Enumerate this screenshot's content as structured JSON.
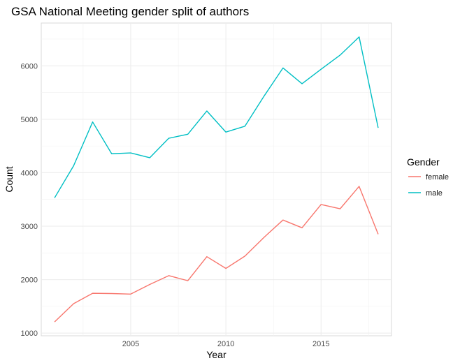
{
  "chart_data": {
    "type": "line",
    "title": "GSA National Meeting gender split of authors",
    "xlabel": "Year",
    "ylabel": "Count",
    "xlim": [
      2000.3,
      2018.7
    ],
    "ylim": [
      950,
      6800
    ],
    "x_ticks": [
      2005,
      2010,
      2015
    ],
    "x_minor_ticks": [
      2002.5,
      2007.5,
      2012.5,
      2017.5
    ],
    "y_ticks": [
      1000,
      2000,
      3000,
      4000,
      5000,
      6000
    ],
    "y_minor_ticks": [
      1500,
      2500,
      3500,
      4500,
      5500,
      6500
    ],
    "grid": true,
    "legend": {
      "title": "Gender",
      "position": "right"
    },
    "x": [
      2001,
      2002,
      2003,
      2004,
      2005,
      2006,
      2007,
      2008,
      2009,
      2010,
      2011,
      2012,
      2013,
      2014,
      2015,
      2016,
      2017,
      2018
    ],
    "series": [
      {
        "name": "female",
        "color": "#F8766D",
        "values": [
          1210,
          1550,
          1745,
          1740,
          1730,
          1910,
          2075,
          1980,
          2430,
          2210,
          2440,
          2790,
          3115,
          2970,
          3405,
          3325,
          3745,
          2850
        ]
      },
      {
        "name": "male",
        "color": "#00BFC4",
        "values": [
          3530,
          4130,
          4950,
          4355,
          4370,
          4280,
          4645,
          4720,
          5155,
          4760,
          4870,
          5430,
          5960,
          5665,
          5935,
          6200,
          6540,
          4840
        ]
      }
    ]
  }
}
